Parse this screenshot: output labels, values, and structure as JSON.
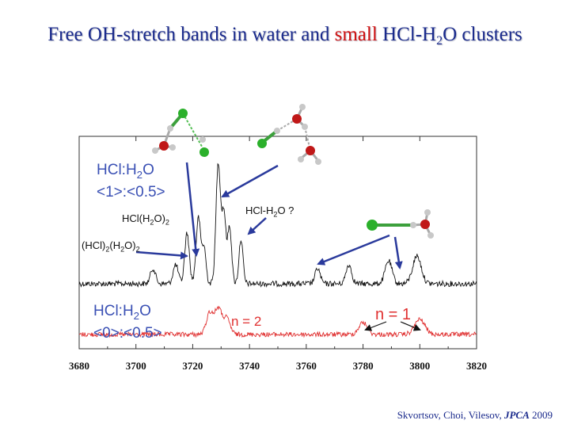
{
  "title": {
    "part1": "Free OH-stretch bands in water and ",
    "highlight": "small",
    "part2": " HCl-H",
    "sub": "2",
    "part3": "O clusters"
  },
  "labels": {
    "black_label_line1_a": "HCl:H",
    "black_label_line1_sub": "2",
    "black_label_line1_b": "O",
    "black_label_line2": "<1>:<0.5>",
    "red_label_line1_a": "HCl:H",
    "red_label_line1_sub": "2",
    "red_label_line1_b": "O",
    "red_label_line2": "<0>:<0.5>",
    "ann_hcl_h2o2_a": "HCl(H",
    "ann_hcl_h2o2_sub1": "2",
    "ann_hcl_h2o2_b": "O)",
    "ann_hcl_h2o2_sub2": "2",
    "ann_hcl2_a": "(HCl)",
    "ann_hcl2_sub1": "2",
    "ann_hcl2_b": "(H",
    "ann_hcl2_sub2": "2",
    "ann_hcl2_c": "O)",
    "ann_hcl2_sub3": "2",
    "ann_hcl_h2o_a": "HCl-H",
    "ann_hcl_h2o_sub": "2",
    "ann_hcl_h2o_b": "O ?",
    "n2": "n = 2",
    "n1": "n = 1"
  },
  "citation": {
    "authors": "Skvortsov, Choi, Vilesov, ",
    "journal": "JPCA",
    "year": " 2009"
  },
  "colors": {
    "title": "#1a2a8c",
    "highlight": "#d01010",
    "trace_black": "#111111",
    "trace_red": "#e03030",
    "label_blue": "#3a50b4",
    "arrow": "#2a3a9c"
  },
  "chart_data": {
    "type": "line",
    "xlim": [
      3680,
      3820
    ],
    "xticks": [
      3680,
      3700,
      3720,
      3740,
      3760,
      3780,
      3800,
      3820
    ],
    "series": [
      {
        "peaks": [
          {
            "x": 3706,
            "h": 0.12,
            "w": 0.9
          },
          {
            "x": 3714,
            "h": 0.15,
            "w": 0.9
          },
          {
            "x": 3718,
            "h": 0.4,
            "w": 0.8
          },
          {
            "x": 3722,
            "h": 0.52,
            "w": 0.8
          },
          {
            "x": 3724,
            "h": 0.28,
            "w": 0.7
          },
          {
            "x": 3729,
            "h": 0.95,
            "w": 0.8
          },
          {
            "x": 3731,
            "h": 0.55,
            "w": 0.7
          },
          {
            "x": 3733,
            "h": 0.45,
            "w": 0.7
          },
          {
            "x": 3737,
            "h": 0.35,
            "w": 0.7
          },
          {
            "x": 3764,
            "h": 0.12,
            "w": 0.9
          },
          {
            "x": 3775,
            "h": 0.15,
            "w": 1.0
          },
          {
            "x": 3789,
            "h": 0.18,
            "w": 1.2
          },
          {
            "x": 3799,
            "h": 0.22,
            "w": 1.5
          }
        ]
      },
      {
        "peaks": [
          {
            "x": 3726,
            "h": 0.55,
            "w": 1.2
          },
          {
            "x": 3729,
            "h": 0.65,
            "w": 1.2
          },
          {
            "x": 3732,
            "h": 0.4,
            "w": 1.2
          },
          {
            "x": 3780,
            "h": 0.3,
            "w": 1.5
          },
          {
            "x": 3800,
            "h": 0.38,
            "w": 1.8
          }
        ]
      }
    ]
  }
}
